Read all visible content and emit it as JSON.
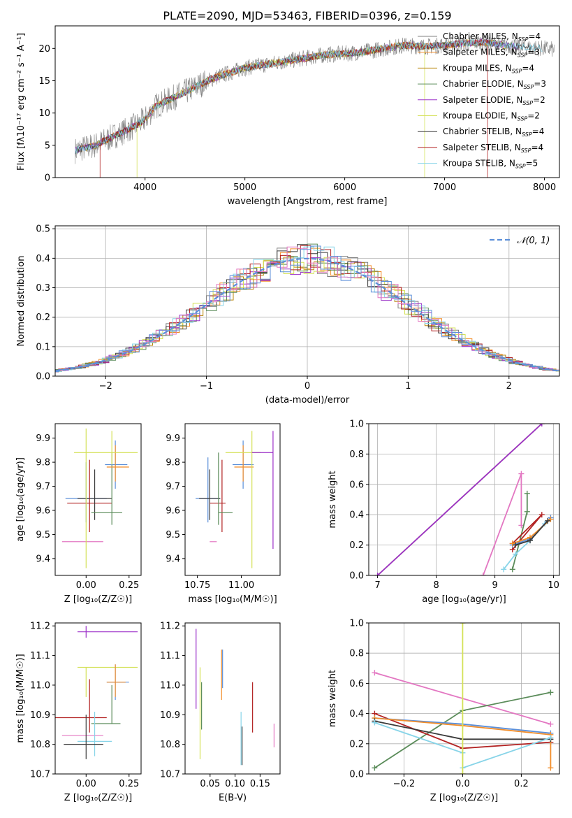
{
  "figure": {
    "title": "PLATE=2090, MJD=53463, FIBERID=0396, z=0.159"
  },
  "legend_colors": [
    "#808080",
    "#f28e2b",
    "#b8860b",
    "#5b8c5a",
    "#9b30c8",
    "#d4e157",
    "#3a3a3a",
    "#b22222",
    "#87d4e8"
  ],
  "chart_data": [
    {
      "id": "spectrum",
      "type": "line",
      "xlabel": "wavelength [Angstrom, rest frame]",
      "ylabel": "Flux [fλ10⁻¹⁷ erg cm⁻² s⁻¹ A⁻¹]",
      "xlim": [
        3100,
        8150
      ],
      "ylim": [
        0,
        23.5
      ],
      "xticks": [
        4000,
        5000,
        6000,
        7000,
        8000
      ],
      "yticks": [
        0,
        5,
        10,
        15,
        20
      ],
      "grid": false,
      "legend_position": "right",
      "legend": [
        "Chabrier MILES, N_SSP=4",
        "Salpeter MILES, N_SSP=3",
        "Kroupa MILES, N_SSP=4",
        "Chabrier ELODIE, N_SSP=3",
        "Salpeter ELODIE, N_SSP=2",
        "Kroupa ELODIE, N_SSP=2",
        "Chabrier STELIB, N_SSP=4",
        "Salpeter STELIB, N_SSP=4",
        "Kroupa STELIB, N_SSP=5"
      ],
      "data_curve": {
        "x": [
          3300,
          3500,
          3700,
          3900,
          4000,
          4100,
          4300,
          4500,
          4700,
          4800,
          5000,
          5200,
          5400,
          5600,
          5800,
          6000,
          6200,
          6400,
          6600,
          6800,
          7000,
          7200,
          7400,
          7600,
          7800,
          8000,
          8100
        ],
        "y": [
          4.2,
          5.0,
          6.5,
          8.0,
          9.0,
          11.0,
          12.5,
          14.0,
          15.5,
          16.0,
          17.0,
          17.5,
          18.0,
          18.5,
          19.0,
          19.2,
          19.5,
          20.0,
          20.5,
          20.3,
          20.5,
          20.8,
          21.0,
          20.5,
          20.2,
          20.0,
          19.8
        ]
      },
      "model_cutoffs": [
        {
          "series": "Salpeter STELIB, N_SSP=4",
          "x_start": 3550,
          "x_end": 7430
        },
        {
          "series": "Kroupa ELODIE, N_SSP=2",
          "x_start": 3920,
          "x_end": 6800
        }
      ]
    },
    {
      "id": "residuals",
      "type": "histogram",
      "xlabel": "(data-model)/error",
      "ylabel": "Normed distribution",
      "xlim": [
        -2.5,
        2.5
      ],
      "ylim": [
        0,
        0.51
      ],
      "xticks": [
        -2,
        -1,
        0,
        1,
        2
      ],
      "yticks": [
        0.0,
        0.1,
        0.2,
        0.3,
        0.4,
        0.5
      ],
      "grid": true,
      "legend": [
        "𝒩(0, 1)"
      ],
      "legend_position": "top-right",
      "normal_curve": {
        "mean": 0,
        "sigma": 1,
        "color": "#5b8fd9"
      }
    },
    {
      "id": "age-vs-Z",
      "type": "errorbar",
      "xlabel": "Z [log₁₀(Z/Z☉)]",
      "ylabel": "age  [log₁₀(age/yr)]",
      "xlim": [
        -0.18,
        0.32
      ],
      "ylim": [
        9.33,
        9.96
      ],
      "xticks": [
        0.0,
        0.25
      ],
      "yticks": [
        9.4,
        9.5,
        9.6,
        9.7,
        9.8,
        9.9
      ],
      "grid": false,
      "points": [
        {
          "x": -0.02,
          "y": 9.47,
          "xerr": [
            0.12,
            0.12
          ],
          "yerr": [
            0.0,
            0.0
          ],
          "color": "#e377c2"
        },
        {
          "x": 0.0,
          "y": 9.65,
          "xerr": [
            0.12,
            0.12
          ],
          "yerr": [
            0.1,
            0.15
          ],
          "color": "#5b8fd9"
        },
        {
          "x": 0.02,
          "y": 9.63,
          "xerr": [
            0.13,
            0.13
          ],
          "yerr": [
            0.12,
            0.18
          ],
          "color": "#b22222"
        },
        {
          "x": 0.05,
          "y": 9.65,
          "xerr": [
            0.1,
            0.1
          ],
          "yerr": [
            0.09,
            0.12
          ],
          "color": "#3a3a3a"
        },
        {
          "x": 0.15,
          "y": 9.59,
          "xerr": [
            0.12,
            0.06
          ],
          "yerr": [
            0.05,
            0.25
          ],
          "color": "#5b8c5a"
        },
        {
          "x": 0.17,
          "y": 9.79,
          "xerr": [
            0.06,
            0.07
          ],
          "yerr": [
            0.1,
            0.1
          ],
          "color": "#5b8fd9"
        },
        {
          "x": 0.17,
          "y": 9.78,
          "xerr": [
            0.05,
            0.08
          ],
          "yerr": [
            0.06,
            0.09
          ],
          "color": "#f28e2b"
        },
        {
          "x": 0.15,
          "y": 9.84,
          "xerr": [
            0.22,
            0.15
          ],
          "yerr": [
            0.05,
            0.09
          ],
          "color": "#d4e157"
        },
        {
          "x": 0.0,
          "y": 9.72,
          "xerr": [
            0.0,
            0.0
          ],
          "yerr": [
            0.36,
            0.22
          ],
          "color": "#d4e157"
        }
      ]
    },
    {
      "id": "age-vs-mass",
      "type": "errorbar",
      "xlabel": "mass [log₁₀(M/M☉)]",
      "ylabel": "",
      "xlim": [
        10.68,
        11.22
      ],
      "ylim": [
        9.33,
        9.96
      ],
      "xticks": [
        10.75,
        11.0
      ],
      "yticks": [
        9.4,
        9.5,
        9.6,
        9.7,
        9.8,
        9.9
      ],
      "grid": false,
      "points": [
        {
          "x": 10.84,
          "y": 9.47,
          "xerr": [
            0.02,
            0.02
          ],
          "yerr": [
            0.0,
            0.0
          ],
          "color": "#e377c2"
        },
        {
          "x": 10.81,
          "y": 9.65,
          "xerr": [
            0.07,
            0.07
          ],
          "yerr": [
            0.1,
            0.17
          ],
          "color": "#5b8fd9"
        },
        {
          "x": 10.82,
          "y": 9.65,
          "xerr": [
            0.06,
            0.06
          ],
          "yerr": [
            0.09,
            0.12
          ],
          "color": "#3a3a3a"
        },
        {
          "x": 10.89,
          "y": 9.63,
          "xerr": [
            0.07,
            0.02
          ],
          "yerr": [
            0.12,
            0.18
          ],
          "color": "#b22222"
        },
        {
          "x": 10.87,
          "y": 9.59,
          "xerr": [
            0.0,
            0.08
          ],
          "yerr": [
            0.05,
            0.25
          ],
          "color": "#5b8c5a"
        },
        {
          "x": 11.01,
          "y": 9.79,
          "xerr": [
            0.06,
            0.06
          ],
          "yerr": [
            0.1,
            0.1
          ],
          "color": "#5b8fd9"
        },
        {
          "x": 11.01,
          "y": 9.78,
          "xerr": [
            0.05,
            0.06
          ],
          "yerr": [
            0.06,
            0.09
          ],
          "color": "#f28e2b"
        },
        {
          "x": 11.06,
          "y": 9.84,
          "xerr": [
            0.15,
            0.05
          ],
          "yerr": [
            0.48,
            0.09
          ],
          "color": "#d4e157"
        },
        {
          "x": 11.18,
          "y": 9.84,
          "xerr": [
            0.12,
            0.0
          ],
          "yerr": [
            0.4,
            0.09
          ],
          "color": "#9b30c8"
        }
      ]
    },
    {
      "id": "mass-weight-vs-age",
      "type": "line",
      "xlabel": "age  [log₁₀(age/yr)]",
      "ylabel": "mass weight",
      "xlim": [
        6.85,
        10.1
      ],
      "ylim": [
        0,
        1.0
      ],
      "xticks": [
        7,
        8,
        9,
        10
      ],
      "yticks": [
        0.0,
        0.2,
        0.4,
        0.6,
        0.8,
        1.0
      ],
      "grid": true,
      "series": [
        {
          "color": "#d4e157",
          "x": [
            7.0,
            9.8
          ],
          "y": [
            0.0,
            1.0
          ]
        },
        {
          "color": "#9b30c8",
          "x": [
            7.0,
            9.8
          ],
          "y": [
            0.0,
            1.0
          ]
        },
        {
          "color": "#e377c2",
          "x": [
            8.8,
            9.45,
            9.45
          ],
          "y": [
            0.0,
            0.67,
            0.33
          ]
        },
        {
          "color": "#5b8c5a",
          "x": [
            9.3,
            9.55,
            9.55
          ],
          "y": [
            0.04,
            0.42,
            0.54
          ]
        },
        {
          "color": "#b22222",
          "x": [
            9.3,
            9.8,
            9.3
          ],
          "y": [
            0.17,
            0.4,
            0.21
          ]
        },
        {
          "color": "#87d4e8",
          "x": [
            9.15,
            9.35,
            9.6,
            9.85
          ],
          "y": [
            0.04,
            0.14,
            0.23,
            0.34
          ]
        },
        {
          "color": "#5b8fd9",
          "x": [
            9.3,
            9.6,
            9.95
          ],
          "y": [
            0.2,
            0.24,
            0.38
          ]
        },
        {
          "color": "#f28e2b",
          "x": [
            9.3,
            9.6,
            9.95
          ],
          "y": [
            0.21,
            0.25,
            0.37
          ]
        },
        {
          "color": "#3a3a3a",
          "x": [
            9.35,
            9.6,
            9.9
          ],
          "y": [
            0.2,
            0.23,
            0.36
          ]
        }
      ]
    },
    {
      "id": "mass-vs-Z",
      "type": "errorbar",
      "xlabel": "Z [log₁₀(Z/Z☉)]",
      "ylabel": "mass [log₁₀(M/M☉)]",
      "xlim": [
        -0.18,
        0.32
      ],
      "ylim": [
        10.7,
        11.21
      ],
      "xticks": [
        0.0,
        0.25
      ],
      "yticks": [
        10.7,
        10.8,
        10.9,
        11.0,
        11.1,
        11.2
      ],
      "grid": false,
      "points": [
        {
          "x": 0.0,
          "y": 11.18,
          "xerr": [
            0.05,
            0.3
          ],
          "yerr": [
            0.02,
            0.02
          ],
          "color": "#9b30c8"
        },
        {
          "x": 0.0,
          "y": 11.06,
          "xerr": [
            0.05,
            0.3
          ],
          "yerr": [
            0.1,
            0.0
          ],
          "color": "#d4e157"
        },
        {
          "x": 0.17,
          "y": 11.01,
          "xerr": [
            0.05,
            0.08
          ],
          "yerr": [
            0.06,
            0.06
          ],
          "color": "#5b8fd9"
        },
        {
          "x": 0.17,
          "y": 11.01,
          "xerr": [
            0.05,
            0.06
          ],
          "yerr": [
            0.05,
            0.06
          ],
          "color": "#f28e2b"
        },
        {
          "x": 0.02,
          "y": 10.89,
          "xerr": [
            0.2,
            0.1
          ],
          "yerr": [
            0.05,
            0.13
          ],
          "color": "#b22222"
        },
        {
          "x": 0.15,
          "y": 10.87,
          "xerr": [
            0.12,
            0.05
          ],
          "yerr": [
            0.0,
            0.13
          ],
          "color": "#5b8c5a"
        },
        {
          "x": -0.02,
          "y": 10.83,
          "xerr": [
            0.12,
            0.12
          ],
          "yerr": [
            0.0,
            0.0
          ],
          "color": "#e377c2"
        },
        {
          "x": 0.05,
          "y": 10.81,
          "xerr": [
            0.1,
            0.1
          ],
          "yerr": [
            0.05,
            0.1
          ],
          "color": "#87d4e8"
        },
        {
          "x": 0.0,
          "y": 10.8,
          "xerr": [
            0.13,
            0.1
          ],
          "yerr": [
            0.05,
            0.1
          ],
          "color": "#3a3a3a"
        }
      ]
    },
    {
      "id": "mass-vs-EBV",
      "type": "errorbar",
      "xlabel": "E(B-V)",
      "ylabel": "",
      "xlim": [
        0.0,
        0.19
      ],
      "ylim": [
        10.7,
        11.21
      ],
      "xticks": [
        0.05,
        0.1,
        0.15
      ],
      "yticks": [
        10.7,
        10.8,
        10.9,
        11.0,
        11.1,
        11.2
      ],
      "grid": false,
      "points": [
        {
          "x": 0.022,
          "y": 11.06,
          "xerr": [
            0.0,
            0.0
          ],
          "yerr": [
            0.14,
            0.13
          ],
          "color": "#9b30c8"
        },
        {
          "x": 0.03,
          "y": 10.92,
          "xerr": [
            0.0,
            0.0
          ],
          "yerr": [
            0.17,
            0.14
          ],
          "color": "#d4e157"
        },
        {
          "x": 0.033,
          "y": 10.93,
          "xerr": [
            0.0,
            0.0
          ],
          "yerr": [
            0.08,
            0.08
          ],
          "color": "#5b8c5a"
        },
        {
          "x": 0.073,
          "y": 11.04,
          "xerr": [
            0.0,
            0.0
          ],
          "yerr": [
            0.09,
            0.08
          ],
          "color": "#f28e2b"
        },
        {
          "x": 0.075,
          "y": 11.05,
          "xerr": [
            0.0,
            0.0
          ],
          "yerr": [
            0.06,
            0.07
          ],
          "color": "#5b8fd9"
        },
        {
          "x": 0.112,
          "y": 10.83,
          "xerr": [
            0.0,
            0.0
          ],
          "yerr": [
            0.1,
            0.08
          ],
          "color": "#87d4e8"
        },
        {
          "x": 0.114,
          "y": 10.8,
          "xerr": [
            0.0,
            0.0
          ],
          "yerr": [
            0.07,
            0.06
          ],
          "color": "#3a3a3a"
        },
        {
          "x": 0.135,
          "y": 10.93,
          "xerr": [
            0.0,
            0.0
          ],
          "yerr": [
            0.09,
            0.08
          ],
          "color": "#b22222"
        },
        {
          "x": 0.178,
          "y": 10.83,
          "xerr": [
            0.0,
            0.0
          ],
          "yerr": [
            0.04,
            0.04
          ],
          "color": "#e377c2"
        }
      ]
    },
    {
      "id": "mass-weight-vs-Z",
      "type": "line",
      "xlabel": "Z [log₁₀(Z/Z☉)]",
      "ylabel": "mass weight",
      "xlim": [
        -0.32,
        0.33
      ],
      "ylim": [
        0,
        1.0
      ],
      "xticks": [
        -0.2,
        0.0,
        0.2
      ],
      "yticks": [
        0.0,
        0.2,
        0.4,
        0.6,
        0.8,
        1.0
      ],
      "grid": true,
      "series": [
        {
          "color": "#e377c2",
          "x": [
            -0.3,
            0.3
          ],
          "y": [
            0.67,
            0.33
          ]
        },
        {
          "color": "#5b8c5a",
          "x": [
            -0.3,
            0.0,
            0.3
          ],
          "y": [
            0.04,
            0.42,
            0.54
          ]
        },
        {
          "color": "#b22222",
          "x": [
            -0.3,
            0.0,
            0.3
          ],
          "y": [
            0.4,
            0.17,
            0.21
          ]
        },
        {
          "color": "#5b8fd9",
          "x": [
            -0.3,
            0.0,
            0.3
          ],
          "y": [
            0.37,
            0.33,
            0.27
          ]
        },
        {
          "color": "#f28e2b",
          "x": [
            -0.3,
            0.0,
            0.3,
            0.3
          ],
          "y": [
            0.37,
            0.32,
            0.26,
            0.04
          ]
        },
        {
          "color": "#3a3a3a",
          "x": [
            -0.3,
            0.0,
            0.3
          ],
          "y": [
            0.35,
            0.23,
            0.23
          ]
        },
        {
          "color": "#87d4e8",
          "x": [
            -0.3,
            0.0,
            0.0,
            0.3
          ],
          "y": [
            0.34,
            0.14,
            0.04,
            0.24
          ]
        },
        {
          "color": "#d4e157",
          "x": [
            0.0,
            0.0
          ],
          "y": [
            0.0,
            1.0
          ]
        }
      ]
    }
  ]
}
